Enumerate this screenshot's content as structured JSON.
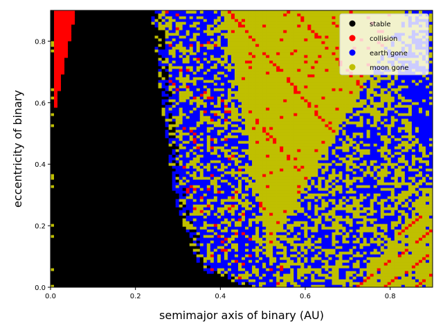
{
  "chart_data": {
    "type": "heatmap",
    "title": "",
    "xlabel": "semimajor axis of binary (AU)",
    "ylabel": "eccentricity of binary",
    "xlim": [
      0.0,
      0.9
    ],
    "ylim": [
      0.0,
      0.9
    ],
    "x_ticks": [
      0.0,
      0.2,
      0.4,
      0.6,
      0.8
    ],
    "x_tick_labels": [
      "0.0",
      "0.2",
      "0.4",
      "0.6",
      "0.8"
    ],
    "y_ticks": [
      0.0,
      0.2,
      0.4,
      0.6,
      0.8
    ],
    "y_tick_labels": [
      "0.0",
      "0.2",
      "0.4",
      "0.6",
      "0.8"
    ],
    "grid": false,
    "legend_position": "top-right",
    "legend": [
      {
        "label": "stable",
        "color": "#000000"
      },
      {
        "label": "collision",
        "color": "#ff0000"
      },
      {
        "label": "earth gone",
        "color": "#0000ff"
      },
      {
        "label": "moon gone",
        "color": "#bfbf00"
      }
    ],
    "regions": [
      {
        "outcome": "stable",
        "description_points": [
          [
            0.02,
            0.0
          ],
          [
            0.02,
            0.9
          ],
          [
            0.25,
            0.9
          ],
          [
            0.27,
            0.6
          ],
          [
            0.3,
            0.3
          ],
          [
            0.37,
            0.05
          ],
          [
            0.48,
            0.0
          ]
        ]
      },
      {
        "outcome": "collision",
        "description_points": [
          [
            0.0,
            0.0
          ],
          [
            0.01,
            0.9
          ],
          [
            0.06,
            0.9
          ],
          [
            0.03,
            0.6
          ]
        ]
      },
      {
        "outcome": "earth gone",
        "description_points": [
          [
            0.27,
            0.9
          ],
          [
            0.38,
            0.2
          ],
          [
            0.5,
            0.15
          ],
          [
            0.65,
            0.4
          ],
          [
            0.75,
            0.7
          ],
          [
            0.9,
            0.7
          ],
          [
            0.9,
            0.35
          ]
        ]
      },
      {
        "outcome": "moon gone",
        "description_points": [
          [
            0.38,
            0.9
          ],
          [
            0.48,
            0.2
          ],
          [
            0.7,
            0.6
          ],
          [
            0.78,
            0.9
          ],
          [
            0.9,
            0.3
          ],
          [
            0.72,
            0.0
          ]
        ]
      }
    ]
  }
}
